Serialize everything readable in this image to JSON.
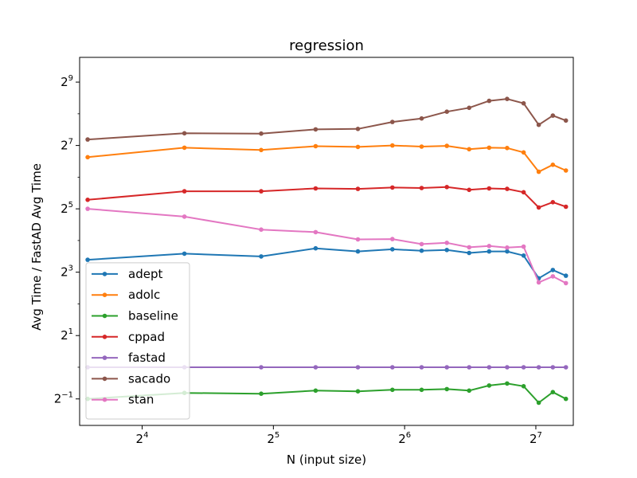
{
  "chart_data": {
    "type": "line",
    "title": "regression",
    "xlabel": "N (input size)",
    "ylabel": "Avg Time / FastAD Avg Time",
    "xscale": "log2",
    "yscale": "log2",
    "xlim": [
      11.5,
      156
    ],
    "ylim": [
      0.28,
      880
    ],
    "xticks": [
      {
        "value": 16,
        "base": "2",
        "exp": "4"
      },
      {
        "value": 32,
        "base": "2",
        "exp": "5"
      },
      {
        "value": 64,
        "base": "2",
        "exp": "6"
      },
      {
        "value": 128,
        "base": "2",
        "exp": "7"
      }
    ],
    "yticks": [
      {
        "value": 0.5,
        "base": "2",
        "exp": "−1"
      },
      {
        "value": 2,
        "base": "2",
        "exp": "1"
      },
      {
        "value": 8,
        "base": "2",
        "exp": "3"
      },
      {
        "value": 32,
        "base": "2",
        "exp": "5"
      },
      {
        "value": 128,
        "base": "2",
        "exp": "7"
      },
      {
        "value": 512,
        "base": "2",
        "exp": "9"
      }
    ],
    "grid": false,
    "legend_position": "lower-left",
    "x": [
      12,
      20,
      30,
      40,
      50,
      60,
      70,
      80,
      90,
      100,
      110,
      120,
      130,
      140,
      150
    ],
    "series": [
      {
        "name": "adept",
        "color": "#1f77b4",
        "values": [
          10.5,
          12.0,
          11.3,
          13.5,
          12.6,
          13.2,
          12.8,
          13.0,
          12.2,
          12.6,
          12.6,
          11.5,
          7.0,
          8.4,
          7.4
        ]
      },
      {
        "name": "adolc",
        "color": "#ff7f0e",
        "values": [
          99,
          122,
          116,
          126,
          124,
          128,
          125,
          127,
          118,
          122,
          121,
          110,
          72,
          84,
          74
        ]
      },
      {
        "name": "baseline",
        "color": "#2ca02c",
        "values": [
          0.5,
          0.57,
          0.56,
          0.6,
          0.59,
          0.61,
          0.61,
          0.62,
          0.6,
          0.67,
          0.7,
          0.66,
          0.46,
          0.58,
          0.5
        ]
      },
      {
        "name": "cppad",
        "color": "#d62728",
        "values": [
          39,
          47,
          47,
          50,
          49.5,
          51,
          50.5,
          51.5,
          48.5,
          50,
          49.5,
          46,
          33,
          37,
          33.5
        ]
      },
      {
        "name": "fastad",
        "color": "#9467bd",
        "values": [
          1,
          1,
          1,
          1,
          1,
          1,
          1,
          1,
          1,
          1,
          1,
          1,
          1,
          1,
          1
        ]
      },
      {
        "name": "sacado",
        "color": "#8c564b",
        "values": [
          146,
          167,
          166,
          182,
          184,
          214,
          231,
          268,
          292,
          340,
          354,
          322,
          201,
          246,
          221
        ]
      },
      {
        "name": "stan",
        "color": "#e377c2",
        "values": [
          32,
          27,
          20.3,
          19.2,
          16.4,
          16.5,
          14.8,
          15.2,
          13.8,
          14.2,
          13.7,
          14.0,
          6.4,
          7.3,
          6.3
        ]
      }
    ]
  }
}
